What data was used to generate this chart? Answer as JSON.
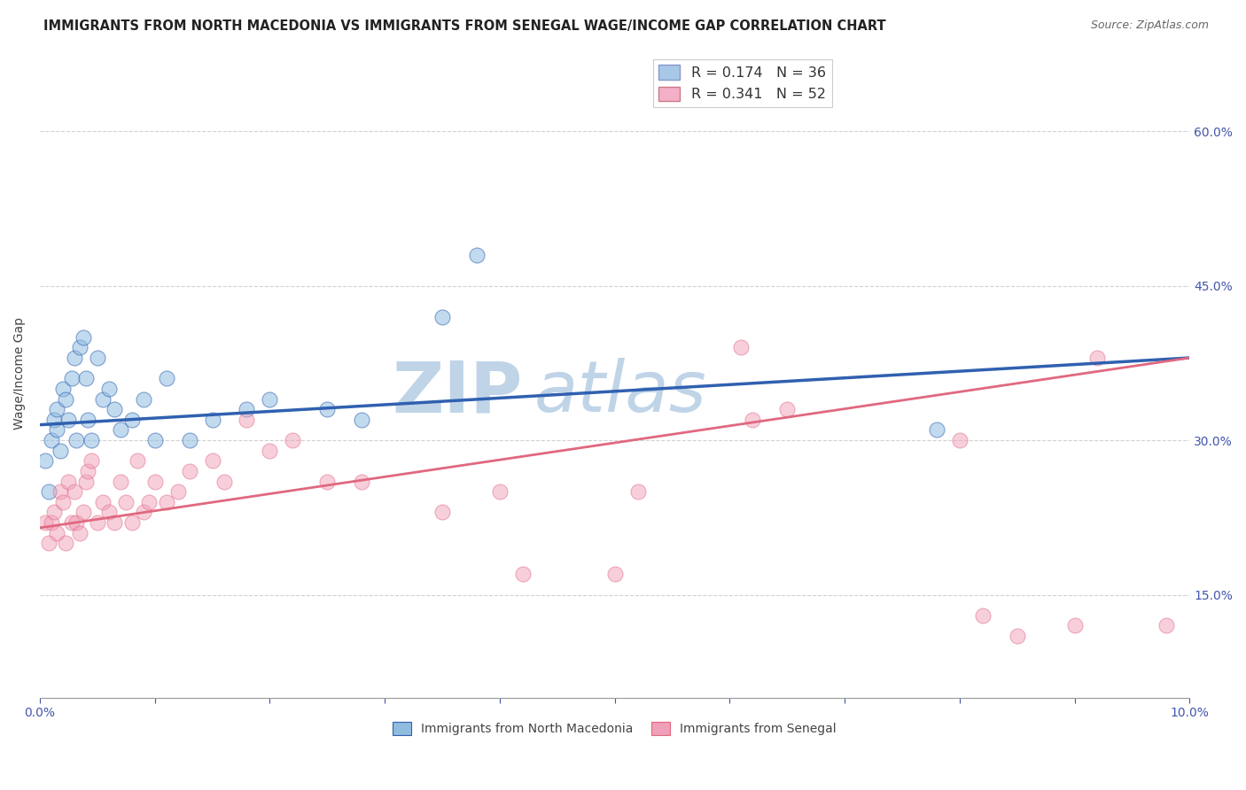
{
  "title": "IMMIGRANTS FROM NORTH MACEDONIA VS IMMIGRANTS FROM SENEGAL WAGE/INCOME GAP CORRELATION CHART",
  "source": "Source: ZipAtlas.com",
  "ylabel": "Wage/Income Gap",
  "x_tick_labels": [
    "0.0%",
    "",
    "",
    "",
    "",
    "",
    "",
    "",
    "",
    "",
    "10.0%"
  ],
  "x_tick_values": [
    0.0,
    1.0,
    2.0,
    3.0,
    4.0,
    5.0,
    6.0,
    7.0,
    8.0,
    9.0,
    10.0
  ],
  "y_tick_labels": [
    "15.0%",
    "30.0%",
    "45.0%",
    "60.0%"
  ],
  "y_tick_values": [
    15.0,
    30.0,
    45.0,
    60.0
  ],
  "xlim": [
    0.0,
    10.0
  ],
  "ylim": [
    5.0,
    68.0
  ],
  "legend1_r": "0.174",
  "legend1_n": "36",
  "legend2_r": "0.341",
  "legend2_n": "52",
  "legend1_color": "#a8c8e8",
  "legend2_color": "#f4b0c8",
  "series1_name": "Immigrants from North Macedonia",
  "series2_name": "Immigrants from Senegal",
  "series1_color": "#90bce0",
  "series2_color": "#f0a0b8",
  "trendline1_color": "#3060b0",
  "trendline2_color": "#e06880",
  "watermark_zip": "ZIP",
  "watermark_atlas": "atlas",
  "watermark_color": "#c0d4e8",
  "title_fontsize": 10.5,
  "source_fontsize": 9,
  "series1_x": [
    0.05,
    0.08,
    0.1,
    0.12,
    0.15,
    0.15,
    0.18,
    0.2,
    0.22,
    0.25,
    0.28,
    0.3,
    0.32,
    0.35,
    0.38,
    0.4,
    0.42,
    0.45,
    0.5,
    0.55,
    0.6,
    0.65,
    0.7,
    0.8,
    0.9,
    1.0,
    1.1,
    1.3,
    1.5,
    1.8,
    2.0,
    2.5,
    2.8,
    3.5,
    3.8,
    7.8
  ],
  "series1_y": [
    28,
    25,
    30,
    32,
    31,
    33,
    29,
    35,
    34,
    32,
    36,
    38,
    30,
    39,
    40,
    36,
    32,
    30,
    38,
    34,
    35,
    33,
    31,
    32,
    34,
    30,
    36,
    30,
    32,
    33,
    34,
    33,
    32,
    42,
    48,
    31
  ],
  "series2_x": [
    0.05,
    0.08,
    0.1,
    0.12,
    0.15,
    0.18,
    0.2,
    0.22,
    0.25,
    0.28,
    0.3,
    0.32,
    0.35,
    0.38,
    0.4,
    0.42,
    0.45,
    0.5,
    0.55,
    0.6,
    0.65,
    0.7,
    0.75,
    0.8,
    0.85,
    0.9,
    0.95,
    1.0,
    1.1,
    1.2,
    1.3,
    1.5,
    1.6,
    1.8,
    2.0,
    2.2,
    2.5,
    2.8,
    3.5,
    4.0,
    4.2,
    5.0,
    5.2,
    6.1,
    6.2,
    6.5,
    8.0,
    8.2,
    8.5,
    9.0,
    9.2,
    9.8
  ],
  "series2_y": [
    22,
    20,
    22,
    23,
    21,
    25,
    24,
    20,
    26,
    22,
    25,
    22,
    21,
    23,
    26,
    27,
    28,
    22,
    24,
    23,
    22,
    26,
    24,
    22,
    28,
    23,
    24,
    26,
    24,
    25,
    27,
    28,
    26,
    32,
    29,
    30,
    26,
    26,
    23,
    25,
    17,
    17,
    25,
    39,
    32,
    33,
    30,
    13,
    11,
    12,
    38,
    12
  ]
}
